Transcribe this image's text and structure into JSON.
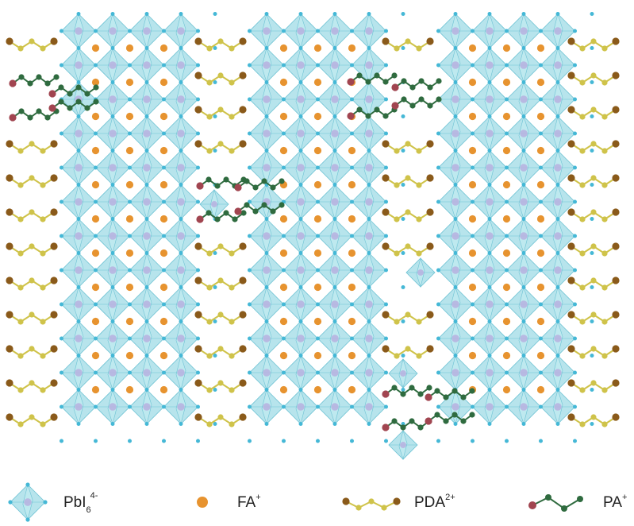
{
  "diagram": {
    "colors": {
      "octahedron_fill": "#9fdbe6",
      "octahedron_edge": "#6fc3d4",
      "corner_iodide": "#45b8d6",
      "lead_center": "#b7b4e0",
      "fa_cation": "#e7932f",
      "pda_end": "#8a5a1a",
      "pda_chain": "#cfc34a",
      "pa_head": "#a14550",
      "pa_chain": "#2f6b3f"
    },
    "legend": {
      "pbi6": {
        "base": "PbI",
        "sub": "6",
        "sup": "4-",
        "icon": "octahedron-icon"
      },
      "fa": {
        "base": "FA",
        "sup": "+",
        "icon": "fa-sphere-icon"
      },
      "pda": {
        "base": "PDA",
        "sup": "2+",
        "icon": "pda-chain-icon"
      },
      "pa": {
        "base": "PA",
        "sup": "+",
        "icon": "pa-chain-icon"
      }
    }
  }
}
